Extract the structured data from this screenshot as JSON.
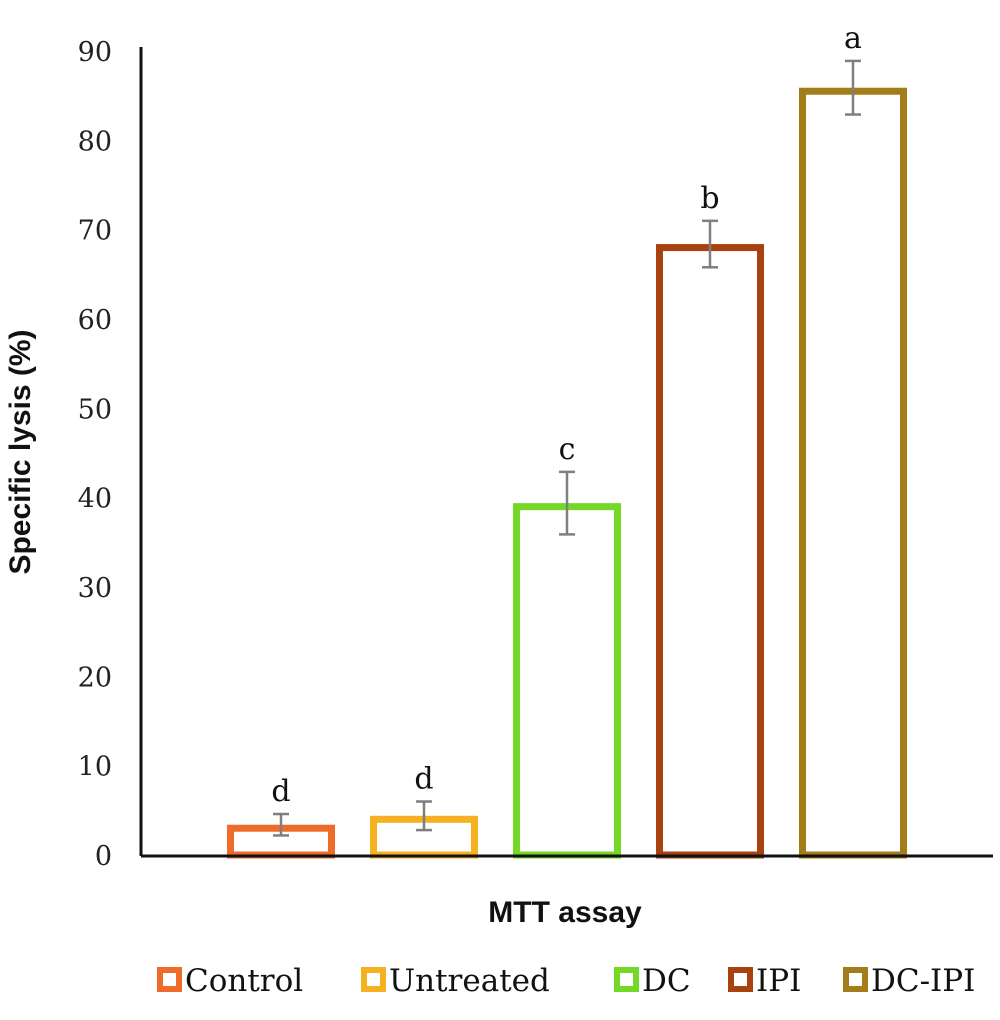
{
  "chart_data": {
    "type": "bar",
    "xlabel": "MTT assay",
    "ylabel": "Specific lysis (%)",
    "ylim": [
      0,
      90
    ],
    "yticks": [
      0,
      10,
      20,
      30,
      40,
      50,
      60,
      70,
      80,
      90
    ],
    "grid": false,
    "legend_position": "bottom",
    "categories": [
      "Control",
      "Untreated",
      "DC",
      "IPI",
      "DC-IPI"
    ],
    "values": [
      3.5,
      4.5,
      39.5,
      68.5,
      86
    ],
    "errors": [
      1.2,
      1.6,
      3.5,
      2.6,
      3.0
    ],
    "significance_labels": [
      "d",
      "d",
      "c",
      "b",
      "a"
    ],
    "colors": [
      "#ed6c2a",
      "#f5b120",
      "#73d826",
      "#a8420f",
      "#a27d19"
    ],
    "error_bar_color": "#7f7f7f"
  }
}
